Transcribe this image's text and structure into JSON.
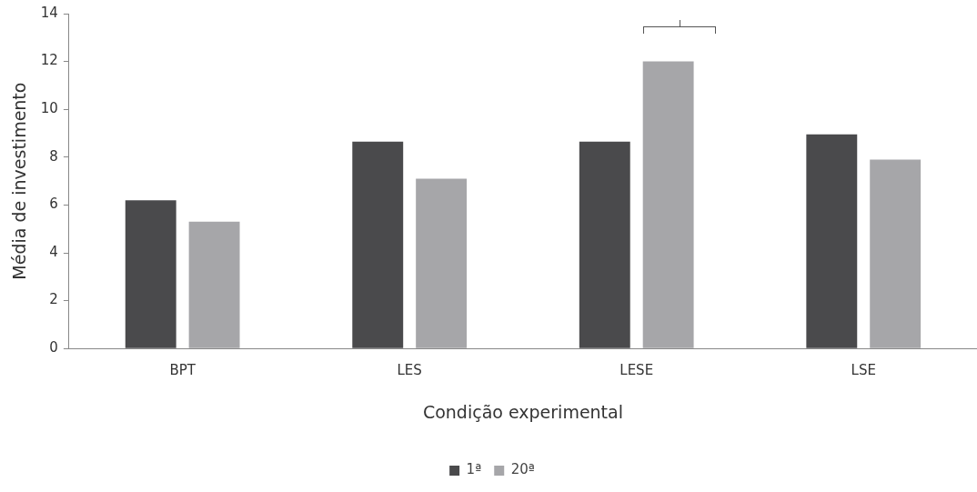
{
  "chart_data": {
    "type": "bar",
    "xlabel": "Condição experimental",
    "ylabel": "Média de investimento",
    "categories": [
      "BPT",
      "LES",
      "LESE",
      "LSE"
    ],
    "series": [
      {
        "name": "1ª",
        "color": "#4a4a4c",
        "values": [
          6.2,
          8.65,
          8.65,
          8.95
        ]
      },
      {
        "name": "20ª",
        "color": "#a6a6a9",
        "values": [
          5.3,
          7.1,
          12.0,
          7.9
        ]
      }
    ],
    "ylim": [
      0,
      14
    ],
    "yticks": [
      0,
      2,
      4,
      6,
      8,
      10,
      12,
      14
    ],
    "grid": false,
    "legend": "bottom"
  }
}
